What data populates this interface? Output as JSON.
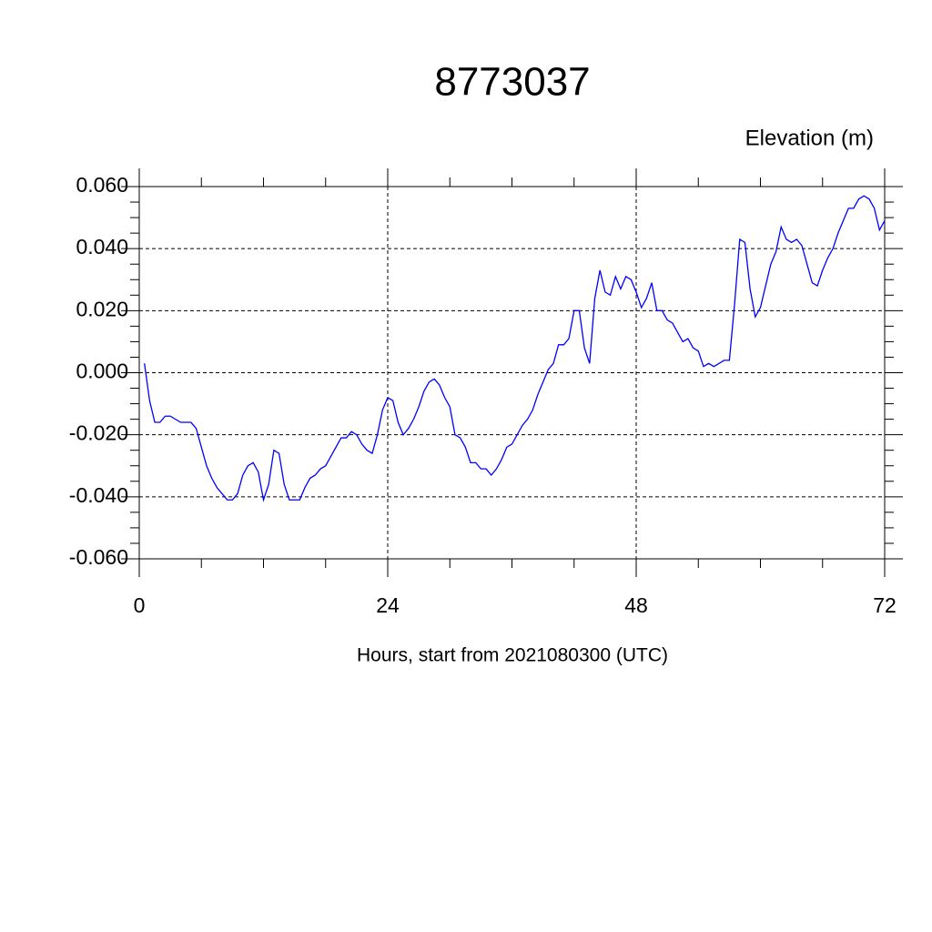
{
  "chart_data": {
    "type": "line",
    "title": "8773037",
    "subtitle": "Elevation (m)",
    "xlabel": "Hours, start from 2021080300 (UTC)",
    "xlim": [
      0,
      72
    ],
    "xticks": [
      0,
      24,
      48,
      72
    ],
    "xminorticks": [
      6,
      12,
      18,
      30,
      36,
      42,
      54,
      60,
      66
    ],
    "ylim": [
      -0.06,
      0.06
    ],
    "yticks": [
      {
        "value": -0.06,
        "label": "-0.060"
      },
      {
        "value": -0.04,
        "label": "-0.040"
      },
      {
        "value": -0.02,
        "label": "-0.020"
      },
      {
        "value": 0,
        "label": "0.000"
      },
      {
        "value": 0.02,
        "label": "0.020"
      },
      {
        "value": 0.04,
        "label": "0.040"
      },
      {
        "value": 0.06,
        "label": "0.060"
      }
    ],
    "yminorticks": [
      -0.055,
      -0.05,
      -0.045,
      -0.035,
      -0.03,
      -0.025,
      -0.015,
      -0.01,
      -0.005,
      0.005,
      0.01,
      0.015,
      0.025,
      0.03,
      0.035,
      0.045,
      0.05,
      0.055
    ],
    "grid": true,
    "x": [
      0.5,
      1,
      1.5,
      2,
      2.5,
      3,
      3.5,
      4,
      4.5,
      5,
      5.5,
      6,
      6.5,
      7,
      7.5,
      8,
      8.5,
      9,
      9.5,
      10,
      10.5,
      11,
      11.5,
      12,
      12.5,
      13,
      13.5,
      14,
      14.5,
      15,
      15.5,
      16,
      16.5,
      17,
      17.5,
      18,
      18.5,
      19,
      19.5,
      20,
      20.5,
      21,
      21.5,
      22,
      22.5,
      23,
      23.5,
      24,
      24.5,
      25,
      25.5,
      26,
      26.5,
      27,
      27.5,
      28,
      28.5,
      29,
      29.5,
      30,
      30.5,
      31,
      31.5,
      32,
      32.5,
      33,
      33.5,
      34,
      34.5,
      35,
      35.5,
      36,
      36.5,
      37,
      37.5,
      38,
      38.5,
      39,
      39.5,
      40,
      40.5,
      41,
      41.5,
      42,
      42.5,
      43,
      43.5,
      44,
      44.5,
      45,
      45.5,
      46,
      46.5,
      47,
      47.5,
      48,
      48.5,
      49,
      49.5,
      50,
      50.5,
      51,
      51.5,
      52,
      52.5,
      53,
      53.5,
      54,
      54.5,
      55,
      55.5,
      56,
      56.5,
      57,
      57.5,
      58,
      58.5,
      59,
      59.5,
      60,
      60.5,
      61,
      61.5,
      62,
      62.5,
      63,
      63.5,
      64,
      64.5,
      65,
      65.5,
      66,
      66.5,
      67,
      67.5,
      68,
      68.5,
      69,
      69.5,
      70,
      70.5,
      71,
      71.5,
      72
    ],
    "series": [
      {
        "color": "#0000ff",
        "values": [
          0.003,
          -0.009,
          -0.016,
          -0.016,
          -0.014,
          -0.014,
          -0.015,
          -0.016,
          -0.016,
          -0.016,
          -0.018,
          -0.024,
          -0.03,
          -0.034,
          -0.037,
          -0.039,
          -0.041,
          -0.041,
          -0.039,
          -0.033,
          -0.03,
          -0.029,
          -0.032,
          -0.041,
          -0.036,
          -0.025,
          -0.026,
          -0.036,
          -0.041,
          -0.041,
          -0.041,
          -0.037,
          -0.034,
          -0.033,
          -0.031,
          -0.03,
          -0.027,
          -0.024,
          -0.021,
          -0.021,
          -0.019,
          -0.02,
          -0.023,
          -0.025,
          -0.026,
          -0.02,
          -0.012,
          -0.008,
          -0.009,
          -0.016,
          -0.02,
          -0.018,
          -0.015,
          -0.011,
          -0.006,
          -0.003,
          -0.002,
          -0.004,
          -0.008,
          -0.011,
          -0.02,
          -0.021,
          -0.024,
          -0.029,
          -0.029,
          -0.031,
          -0.031,
          -0.033,
          -0.031,
          -0.028,
          -0.024,
          -0.023,
          -0.02,
          -0.017,
          -0.015,
          -0.012,
          -0.007,
          -0.003,
          0.001,
          0.003,
          0.009,
          0.009,
          0.011,
          0.02,
          0.02,
          0.008,
          0.003,
          0.024,
          0.033,
          0.026,
          0.025,
          0.031,
          0.027,
          0.031,
          0.03,
          0.026,
          0.021,
          0.024,
          0.029,
          0.02,
          0.02,
          0.017,
          0.016,
          0.013,
          0.01,
          0.011,
          0.008,
          0.007,
          0.002,
          0.003,
          0.002,
          0.003,
          0.004,
          0.004,
          0.022,
          0.043,
          0.042,
          0.027,
          0.018,
          0.021,
          0.028,
          0.035,
          0.039,
          0.047,
          0.043,
          0.042,
          0.043,
          0.041,
          0.035,
          0.029,
          0.028,
          0.033,
          0.037,
          0.04,
          0.045,
          0.049,
          0.053,
          0.053,
          0.056,
          0.057,
          0.056,
          0.053,
          0.046,
          0.049
        ]
      }
    ]
  }
}
